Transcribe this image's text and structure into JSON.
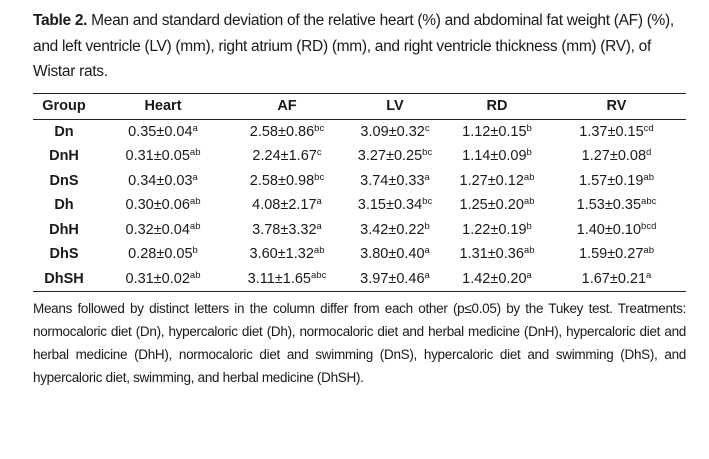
{
  "caption": {
    "label": "Table 2.",
    "text": " Mean and standard deviation of the relative heart (%) and abdominal fat weight (AF) (%), and left ventricle (LV) (mm), right atrium (RD) (mm), and right ventricle thickness (mm) (RV), of Wistar rats."
  },
  "table": {
    "headers": [
      "Group",
      "Heart",
      "AF",
      "LV",
      "RD",
      "RV"
    ],
    "rows": [
      {
        "group": "Dn",
        "cells": [
          [
            "0.35±0.04",
            "a"
          ],
          [
            "2.58±0.86",
            "bc"
          ],
          [
            "3.09±0.32",
            "c"
          ],
          [
            "1.12±0.15",
            "b"
          ],
          [
            "1.37±0.15",
            "cd"
          ]
        ]
      },
      {
        "group": "DnH",
        "cells": [
          [
            "0.31±0.05",
            "ab"
          ],
          [
            "2.24±1.67",
            "c"
          ],
          [
            "3.27±0.25",
            "bc"
          ],
          [
            "1.14±0.09",
            "b"
          ],
          [
            "1.27±0.08",
            "d"
          ]
        ]
      },
      {
        "group": "DnS",
        "cells": [
          [
            "0.34±0.03",
            "a"
          ],
          [
            "2.58±0.98",
            "bc"
          ],
          [
            "3.74±0.33",
            "a"
          ],
          [
            "1.27±0.12",
            "ab"
          ],
          [
            "1.57±0.19",
            "ab"
          ]
        ]
      },
      {
        "group": "Dh",
        "cells": [
          [
            "0.30±0.06",
            "ab"
          ],
          [
            "4.08±2.17",
            "a"
          ],
          [
            "3.15±0.34",
            "bc"
          ],
          [
            "1.25±0.20",
            "ab"
          ],
          [
            "1.53±0.35",
            "abc"
          ]
        ]
      },
      {
        "group": "DhH",
        "cells": [
          [
            "0.32±0.04",
            "ab"
          ],
          [
            "3.78±3.32",
            "a"
          ],
          [
            "3.42±0.22",
            "b"
          ],
          [
            "1.22±0.19",
            "b"
          ],
          [
            "1.40±0.10",
            "bcd"
          ]
        ]
      },
      {
        "group": "DhS",
        "cells": [
          [
            "0.28±0.05",
            "b"
          ],
          [
            "3.60±1.32",
            "ab"
          ],
          [
            "3.80±0.40",
            "a"
          ],
          [
            "1.31±0.36",
            "ab"
          ],
          [
            "1.59±0.27",
            "ab"
          ]
        ]
      },
      {
        "group": "DhSH",
        "cells": [
          [
            "0.31±0.02",
            "ab"
          ],
          [
            "3.11±1.65",
            "abc"
          ],
          [
            "3.97±0.46",
            "a"
          ],
          [
            "1.42±0.20",
            "a"
          ],
          [
            "1.67±0.21",
            "a"
          ]
        ]
      }
    ]
  },
  "footnote": "Means followed by distinct letters in the column differ from each other (p≤0.05) by the Tukey test. Treatments: normocaloric diet (Dn), hypercaloric diet (Dh), normocaloric diet and herbal medicine (DnH), hypercaloric diet and herbal medicine (DhH), normocaloric diet and swimming (DnS), hypercaloric diet and swimming (DhS), and hypercaloric diet, swimming, and herbal medicine (DhSH)."
}
